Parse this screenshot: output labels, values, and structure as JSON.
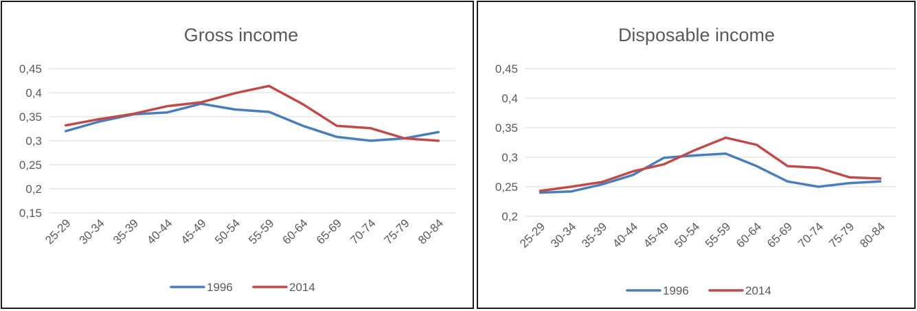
{
  "chart_data": [
    {
      "type": "line",
      "title": "Gross income",
      "categories": [
        "25-29",
        "30-34",
        "35-39",
        "40-44",
        "45-49",
        "50-54",
        "55-59",
        "60-64",
        "65-69",
        "70-74",
        "75-79",
        "80-84"
      ],
      "yticks": [
        "0,15",
        "0,2",
        "0,25",
        "0,3",
        "0,35",
        "0,4",
        "0,45"
      ],
      "ylim": [
        0.15,
        0.45
      ],
      "grid": true,
      "legend_position": "bottom",
      "series": [
        {
          "name": "1996",
          "color": "#4a7ebb",
          "values": [
            0.32,
            0.34,
            0.355,
            0.359,
            0.377,
            0.365,
            0.36,
            0.331,
            0.308,
            0.3,
            0.305,
            0.318
          ]
        },
        {
          "name": "2014",
          "color": "#be4b48",
          "values": [
            0.332,
            0.345,
            0.356,
            0.372,
            0.38,
            0.399,
            0.414,
            0.376,
            0.331,
            0.326,
            0.305,
            0.3
          ]
        }
      ]
    },
    {
      "type": "line",
      "title": "Disposable income",
      "categories": [
        "25-29",
        "30-34",
        "35-39",
        "40-44",
        "45-49",
        "50-54",
        "55-59",
        "60-64",
        "65-69",
        "70-74",
        "75-79",
        "80-84"
      ],
      "yticks": [
        "0,2",
        "0,25",
        "0,3",
        "0,35",
        "0,4",
        "0,45"
      ],
      "ylim": [
        0.2,
        0.45
      ],
      "grid": true,
      "legend_position": "bottom",
      "series": [
        {
          "name": "1996",
          "color": "#4a7ebb",
          "values": [
            0.24,
            0.242,
            0.254,
            0.27,
            0.299,
            0.303,
            0.306,
            0.285,
            0.259,
            0.25,
            0.256,
            0.259
          ]
        },
        {
          "name": "2014",
          "color": "#be4b48",
          "values": [
            0.243,
            0.25,
            0.258,
            0.276,
            0.288,
            0.312,
            0.333,
            0.321,
            0.285,
            0.282,
            0.266,
            0.264
          ]
        }
      ]
    }
  ]
}
